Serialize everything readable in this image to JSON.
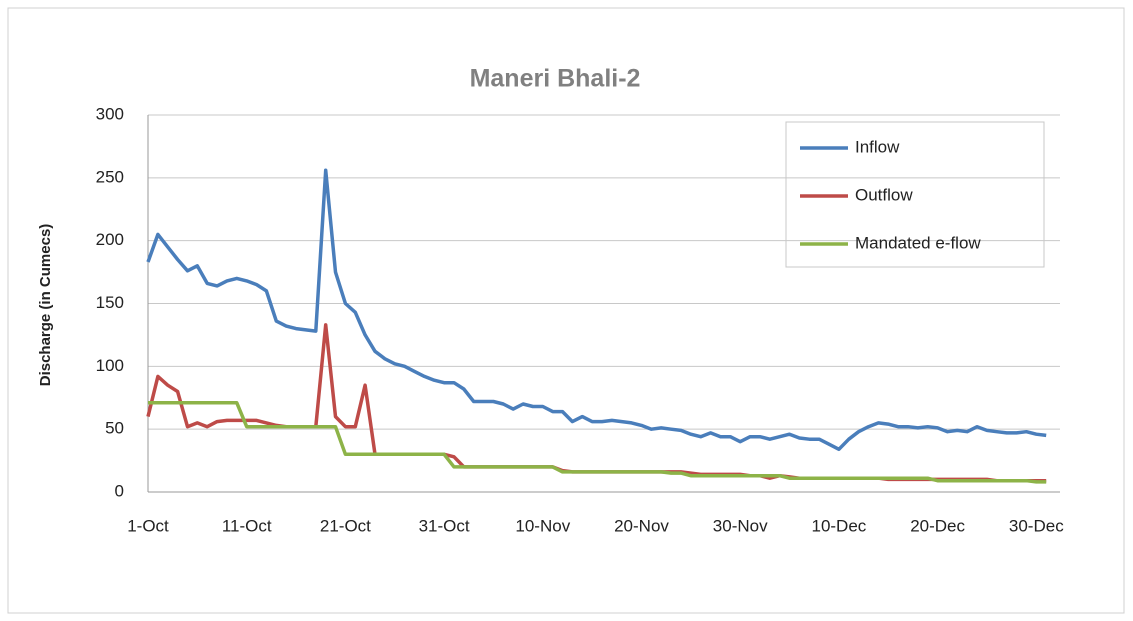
{
  "chart_data": {
    "type": "line",
    "title": "Maneri Bhali-2",
    "y_label": "Discharge (in  Cumecs)",
    "categories": [
      "1-Oct",
      null,
      null,
      null,
      null,
      null,
      null,
      null,
      null,
      null,
      "11-Oct",
      null,
      null,
      null,
      null,
      null,
      null,
      null,
      null,
      null,
      "21-Oct",
      null,
      null,
      null,
      null,
      null,
      null,
      null,
      null,
      null,
      "31-Oct",
      null,
      null,
      null,
      null,
      null,
      null,
      null,
      null,
      null,
      "10-Nov",
      null,
      null,
      null,
      null,
      null,
      null,
      null,
      null,
      null,
      "20-Nov",
      null,
      null,
      null,
      null,
      null,
      null,
      null,
      null,
      null,
      "30-Nov",
      null,
      null,
      null,
      null,
      null,
      null,
      null,
      null,
      null,
      "10-Dec",
      null,
      null,
      null,
      null,
      null,
      null,
      null,
      null,
      null,
      "20-Dec",
      null,
      null,
      null,
      null,
      null,
      null,
      null,
      null,
      null,
      "30-Dec",
      null
    ],
    "series": [
      {
        "name": "Inflow",
        "color": "#4a7ebb",
        "values": [
          183,
          205,
          195,
          185,
          176,
          180,
          166,
          164,
          168,
          170,
          168,
          165,
          160,
          136,
          132,
          130,
          129,
          128,
          256,
          175,
          150,
          143,
          125,
          112,
          106,
          102,
          100,
          96,
          92,
          89,
          87,
          87,
          82,
          72,
          72,
          72,
          70,
          66,
          70,
          68,
          68,
          64,
          64,
          56,
          60,
          56,
          56,
          57,
          56,
          55,
          53,
          50,
          51,
          50,
          49,
          46,
          44,
          47,
          44,
          44,
          40,
          44,
          44,
          42,
          44,
          46,
          43,
          42,
          42,
          38,
          34,
          42,
          48,
          52,
          55,
          54,
          52,
          52,
          51,
          52,
          51,
          48,
          49,
          48,
          52,
          49,
          48,
          47,
          47,
          48,
          46,
          45
        ]
      },
      {
        "name": "Outflow",
        "color": "#be4b48",
        "values": [
          60,
          92,
          85,
          80,
          52,
          55,
          52,
          56,
          57,
          57,
          57,
          57,
          55,
          53,
          52,
          52,
          52,
          52,
          133,
          60,
          52,
          52,
          85,
          30,
          30,
          30,
          30,
          30,
          30,
          30,
          30,
          28,
          20,
          20,
          20,
          20,
          20,
          20,
          20,
          20,
          20,
          20,
          17,
          16,
          16,
          16,
          16,
          16,
          16,
          16,
          16,
          16,
          16,
          16,
          16,
          15,
          14,
          14,
          14,
          14,
          14,
          13,
          13,
          11,
          13,
          12,
          11,
          11,
          11,
          11,
          11,
          11,
          11,
          11,
          11,
          10,
          10,
          10,
          10,
          10,
          10,
          10,
          10,
          10,
          10,
          10,
          9,
          9,
          9,
          9,
          9,
          9
        ]
      },
      {
        "name": "Mandated e-flow",
        "color": "#8db348",
        "values": [
          71,
          71,
          71,
          71,
          71,
          71,
          71,
          71,
          71,
          71,
          52,
          52,
          52,
          52,
          52,
          52,
          52,
          52,
          52,
          52,
          30,
          30,
          30,
          30,
          30,
          30,
          30,
          30,
          30,
          30,
          30,
          20,
          20,
          20,
          20,
          20,
          20,
          20,
          20,
          20,
          20,
          20,
          16,
          16,
          16,
          16,
          16,
          16,
          16,
          16,
          16,
          16,
          16,
          15,
          15,
          13,
          13,
          13,
          13,
          13,
          13,
          13,
          13,
          13,
          13,
          11,
          11,
          11,
          11,
          11,
          11,
          11,
          11,
          11,
          11,
          11,
          11,
          11,
          11,
          11,
          9,
          9,
          9,
          9,
          9,
          9,
          9,
          9,
          9,
          9,
          8,
          8
        ]
      }
    ],
    "ylim": [
      0,
      300
    ],
    "yticks": [
      0,
      50,
      100,
      150,
      200,
      250,
      300
    ],
    "grid": true,
    "legend": "upper right"
  }
}
